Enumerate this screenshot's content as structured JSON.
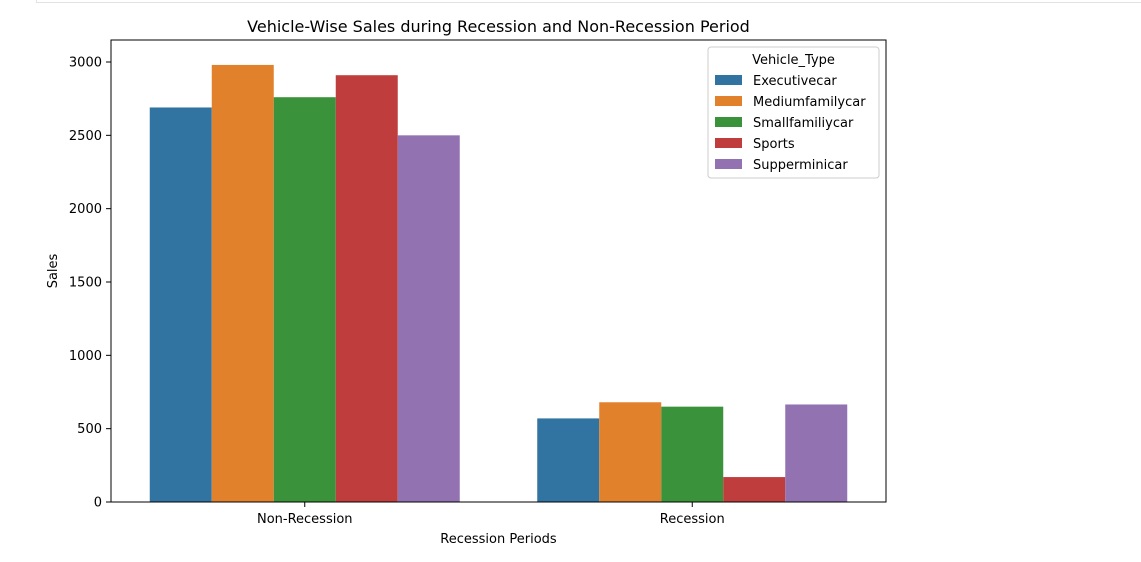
{
  "chart_data": {
    "type": "bar",
    "title": "Vehicle-Wise Sales during Recession and Non-Recession Period",
    "xlabel": "Recession Periods",
    "ylabel": "Sales",
    "ylim": [
      0,
      3150
    ],
    "yticks": [
      0,
      500,
      1000,
      1500,
      2000,
      2500,
      3000
    ],
    "categories": [
      "Non-Recession",
      "Recession"
    ],
    "legend_title": "Vehicle_Type",
    "legend_position": "top-right",
    "grid": false,
    "series": [
      {
        "name": "Executivecar",
        "color": "#3274a1",
        "values": [
          2690,
          570
        ]
      },
      {
        "name": "Mediumfamilycar",
        "color": "#e1812c",
        "values": [
          2980,
          680
        ]
      },
      {
        "name": "Smallfamiliycar",
        "color": "#3a923a",
        "values": [
          2760,
          650
        ]
      },
      {
        "name": "Sports",
        "color": "#c03d3e",
        "values": [
          2910,
          170
        ]
      },
      {
        "name": "Supperminicar",
        "color": "#9372b2",
        "values": [
          2500,
          665
        ]
      }
    ]
  }
}
